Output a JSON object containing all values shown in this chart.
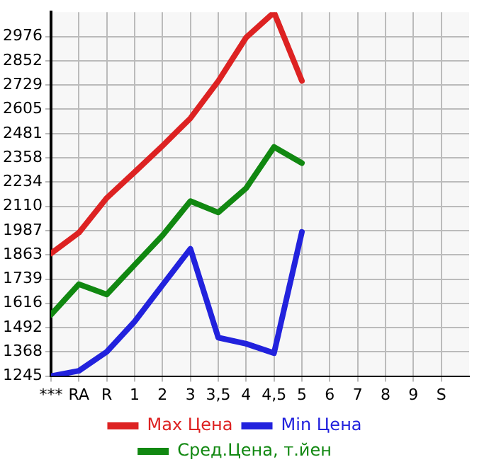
{
  "chart_data": {
    "type": "line",
    "categories": [
      "***",
      "RA",
      "R",
      "1",
      "2",
      "3",
      "3,5",
      "4",
      "4,5",
      "5",
      "6",
      "7",
      "8",
      "9",
      "S"
    ],
    "series": [
      {
        "name": "Max Цена",
        "color": "#dd2222",
        "values": [
          1870,
          1976,
          2153,
          2285,
          2419,
          2559,
          2749,
          2971,
          3099,
          2750,
          null,
          null,
          null,
          null,
          null
        ]
      },
      {
        "name": "Min Цена",
        "color": "#2222dd",
        "values": [
          1245,
          1272,
          1369,
          1523,
          1709,
          1894,
          1441,
          1410,
          1362,
          1980,
          null,
          null,
          null,
          null,
          null
        ]
      },
      {
        "name": "Сред.Цена, т.йен",
        "color": "#118811",
        "values": [
          1558,
          1713,
          1661,
          1812,
          1962,
          2137,
          2079,
          2203,
          2413,
          2331,
          null,
          null,
          null,
          null,
          null
        ]
      }
    ],
    "ylim": [
      1245,
      3100
    ],
    "yticks": [
      1245,
      1368,
      1492,
      1616,
      1739,
      1863,
      1987,
      2110,
      2234,
      2358,
      2481,
      2605,
      2729,
      2852,
      2976
    ],
    "grid": true,
    "legend": "bottom",
    "marker": "none",
    "line_style": "solid"
  }
}
